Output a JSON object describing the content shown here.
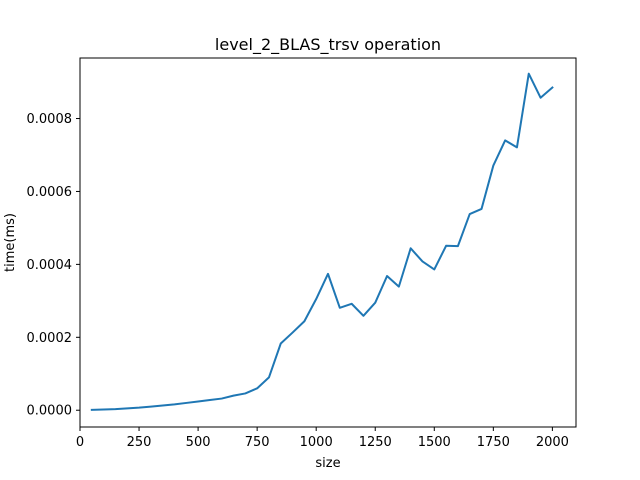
{
  "chart_data": {
    "type": "line",
    "title": "level_2_BLAS_trsv operation",
    "xlabel": "size",
    "ylabel": "time(ms)",
    "xlim": [
      0,
      2100
    ],
    "ylim": [
      -4.6e-05,
      0.000966
    ],
    "x_ticks": [
      0,
      250,
      500,
      750,
      1000,
      1250,
      1500,
      1750,
      2000
    ],
    "x_tick_labels": [
      "0",
      "250",
      "500",
      "750",
      "1000",
      "1250",
      "1500",
      "1750",
      "2000"
    ],
    "y_ticks": [
      0.0,
      0.0002,
      0.0004,
      0.0006,
      0.0008
    ],
    "y_tick_labels": [
      "0.0000",
      "0.0002",
      "0.0004",
      "0.0006",
      "0.0008"
    ],
    "grid": false,
    "legend": "none",
    "series": [
      {
        "color": "#1f77b4",
        "x": [
          50,
          100,
          150,
          200,
          250,
          300,
          350,
          400,
          450,
          500,
          550,
          600,
          650,
          700,
          750,
          800,
          850,
          900,
          950,
          1000,
          1050,
          1100,
          1150,
          1200,
          1250,
          1300,
          1350,
          1400,
          1450,
          1500,
          1550,
          1600,
          1650,
          1700,
          1750,
          1800,
          1850,
          1900,
          1950,
          2000
        ],
        "y": [
          1e-06,
          2e-06,
          3e-06,
          5e-06,
          7e-06,
          1e-05,
          1.3e-05,
          1.6e-05,
          2e-05,
          2.4e-05,
          2.8e-05,
          3.2e-05,
          4e-05,
          4.6e-05,
          6e-05,
          9e-05,
          0.000183,
          0.000213,
          0.000244,
          0.000305,
          0.000374,
          0.000281,
          0.000292,
          0.000259,
          0.000295,
          0.000368,
          0.000339,
          0.000444,
          0.000408,
          0.000386,
          0.000451,
          0.00045,
          0.000538,
          0.000552,
          0.000671,
          0.00074,
          0.000721,
          0.000923,
          0.000857,
          0.000885
        ]
      }
    ]
  }
}
